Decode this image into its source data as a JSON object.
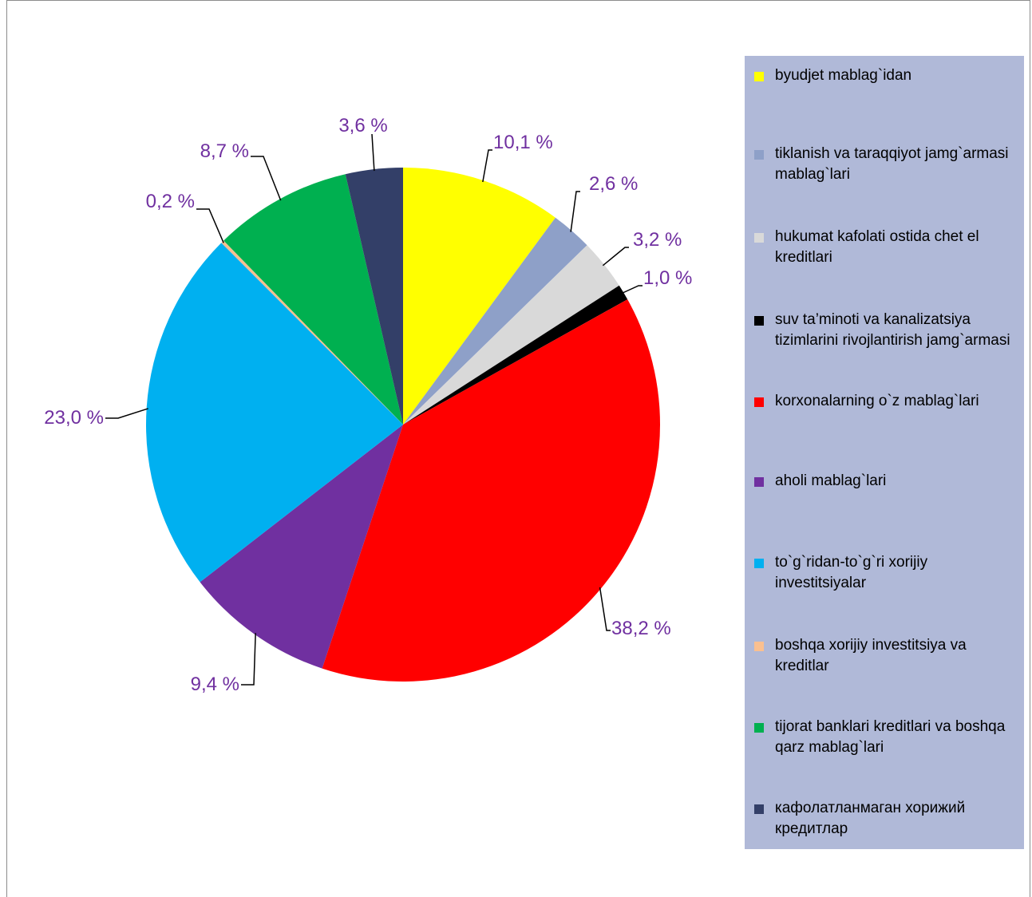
{
  "chart_data": {
    "type": "pie",
    "title": "",
    "start_angle_deg": 0,
    "direction": "clockwise",
    "legend_position": "right",
    "label_color": "#7030A0",
    "slices": [
      {
        "label": "byudjet mablag`idan",
        "value": 10.1,
        "value_label": "10,1 %",
        "color": "#FFFF00"
      },
      {
        "label": "tiklanish va taraqqiyot jamg`armasi mablag`lari",
        "value": 2.6,
        "value_label": "2,6 %",
        "color": "#8EA0C8"
      },
      {
        "label": "hukumat kafolati ostida chet el kreditlari",
        "value": 3.2,
        "value_label": "3,2 %",
        "color": "#D9D9D9"
      },
      {
        "label": "suv ta’minoti va kanalizatsiya tizimlarini rivojlantirish jamg`armasi",
        "value": 1.0,
        "value_label": "1,0 %",
        "color": "#000000"
      },
      {
        "label": "korxonalarning o`z mablag`lari",
        "value": 38.2,
        "value_label": "38,2 %",
        "color": "#FF0000"
      },
      {
        "label": "aholi mablag`lari",
        "value": 9.4,
        "value_label": "9,4 %",
        "color": "#7030A0"
      },
      {
        "label": "to`g`ridan-to`g`ri xorijiy investitsiyalar",
        "value": 23.0,
        "value_label": "23,0 %",
        "color": "#00B0F0"
      },
      {
        "label": "boshqa xorijiy investitsiya va kreditlar",
        "value": 0.2,
        "value_label": "0,2 %",
        "color": "#FAC090"
      },
      {
        "label": "tijorat banklari kreditlari va boshqa qarz mablag`lari",
        "value": 8.7,
        "value_label": "8,7 %",
        "color": "#00B050"
      },
      {
        "label": "кафолатланмаган хорижий кредитлар",
        "value": 3.6,
        "value_label": "3,6 %",
        "color": "#333F68"
      }
    ]
  }
}
